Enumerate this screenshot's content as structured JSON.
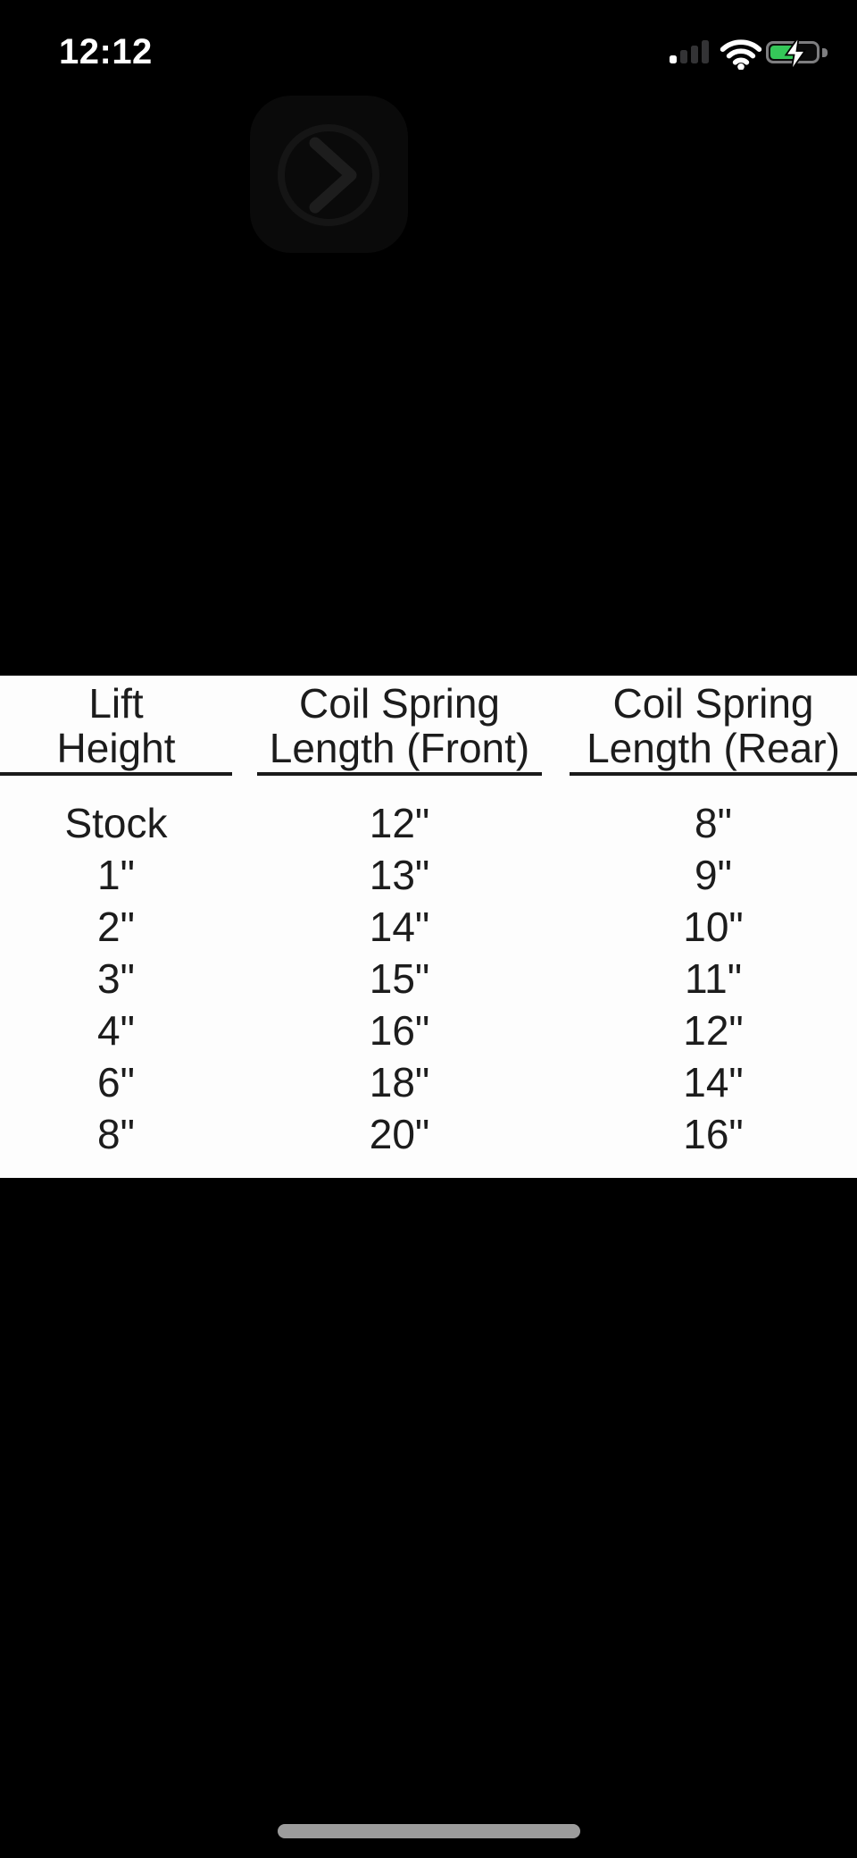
{
  "status_bar": {
    "time": "12:12",
    "signal_bars_filled": 1,
    "signal_bars_total": 4,
    "wifi": "full",
    "battery_charging": true,
    "battery_fill_percent_approx": 55
  },
  "overlay": {
    "next_button_icon": "chevron-right"
  },
  "table": {
    "columns": [
      {
        "label_line1": "Lift",
        "label_line2": "Height"
      },
      {
        "label_line1": "Coil Spring",
        "label_line2": "Length (Front)"
      },
      {
        "label_line1": "Coil Spring",
        "label_line2": "Length (Rear)"
      }
    ],
    "rows": [
      [
        "Stock",
        "12\"",
        "8\""
      ],
      [
        "1\"",
        "13\"",
        "9\""
      ],
      [
        "2\"",
        "14\"",
        "10\""
      ],
      [
        "3\"",
        "15\"",
        "11\""
      ],
      [
        "4\"",
        "16\"",
        "12\""
      ],
      [
        "6\"",
        "18\"",
        "14\""
      ],
      [
        "8\"",
        "20\"",
        "16\""
      ]
    ]
  },
  "colors": {
    "battery_green": "#35c759",
    "background": "#000000",
    "panel": "#fdfdfd",
    "table_text": "#1c1c1c",
    "home_indicator": "#9c9c9c"
  }
}
